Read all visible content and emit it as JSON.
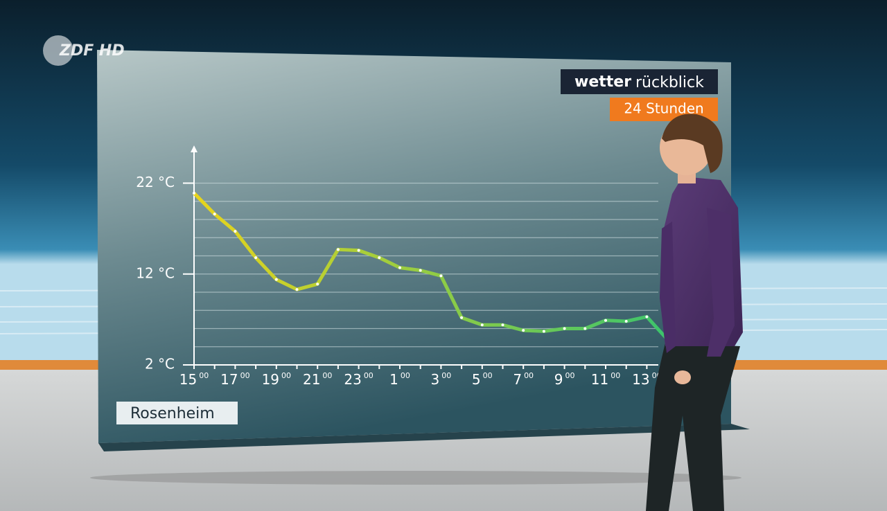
{
  "logo": "ZDF HD",
  "chart_data": {
    "type": "line",
    "brand": "wetter",
    "title": "rückblick",
    "subtitle": "24 Stunden",
    "location": "Rosenheim",
    "categories": [
      "15",
      null,
      "17",
      null,
      "19",
      null,
      "21",
      null,
      "23",
      null,
      "1",
      null,
      "3",
      null,
      "5",
      null,
      "7",
      null,
      "9",
      null,
      "11",
      null,
      "13",
      null
    ],
    "x_tick_suffix": "00",
    "series": [
      {
        "name": "Rosenheim",
        "colors": [
          "#e8d41c",
          "#3cc46c"
        ],
        "values": [
          20.9,
          18.6,
          16.7,
          13.8,
          11.4,
          10.3,
          10.9,
          14.7,
          14.6,
          13.8,
          12.7,
          12.4,
          11.8,
          7.2,
          6.4,
          6.4,
          5.8,
          5.7,
          6.0,
          6.0,
          6.9,
          6.8,
          7.3,
          4.8
        ]
      }
    ],
    "ylim": [
      2,
      26
    ],
    "yticks": [
      {
        "value": 2,
        "label": "2 °C"
      },
      {
        "value": 12,
        "label": "12 °C"
      },
      {
        "value": 22,
        "label": "22 °C"
      }
    ],
    "ygrid": [
      4,
      6,
      8,
      10,
      12,
      14,
      16,
      18,
      20,
      22
    ]
  }
}
